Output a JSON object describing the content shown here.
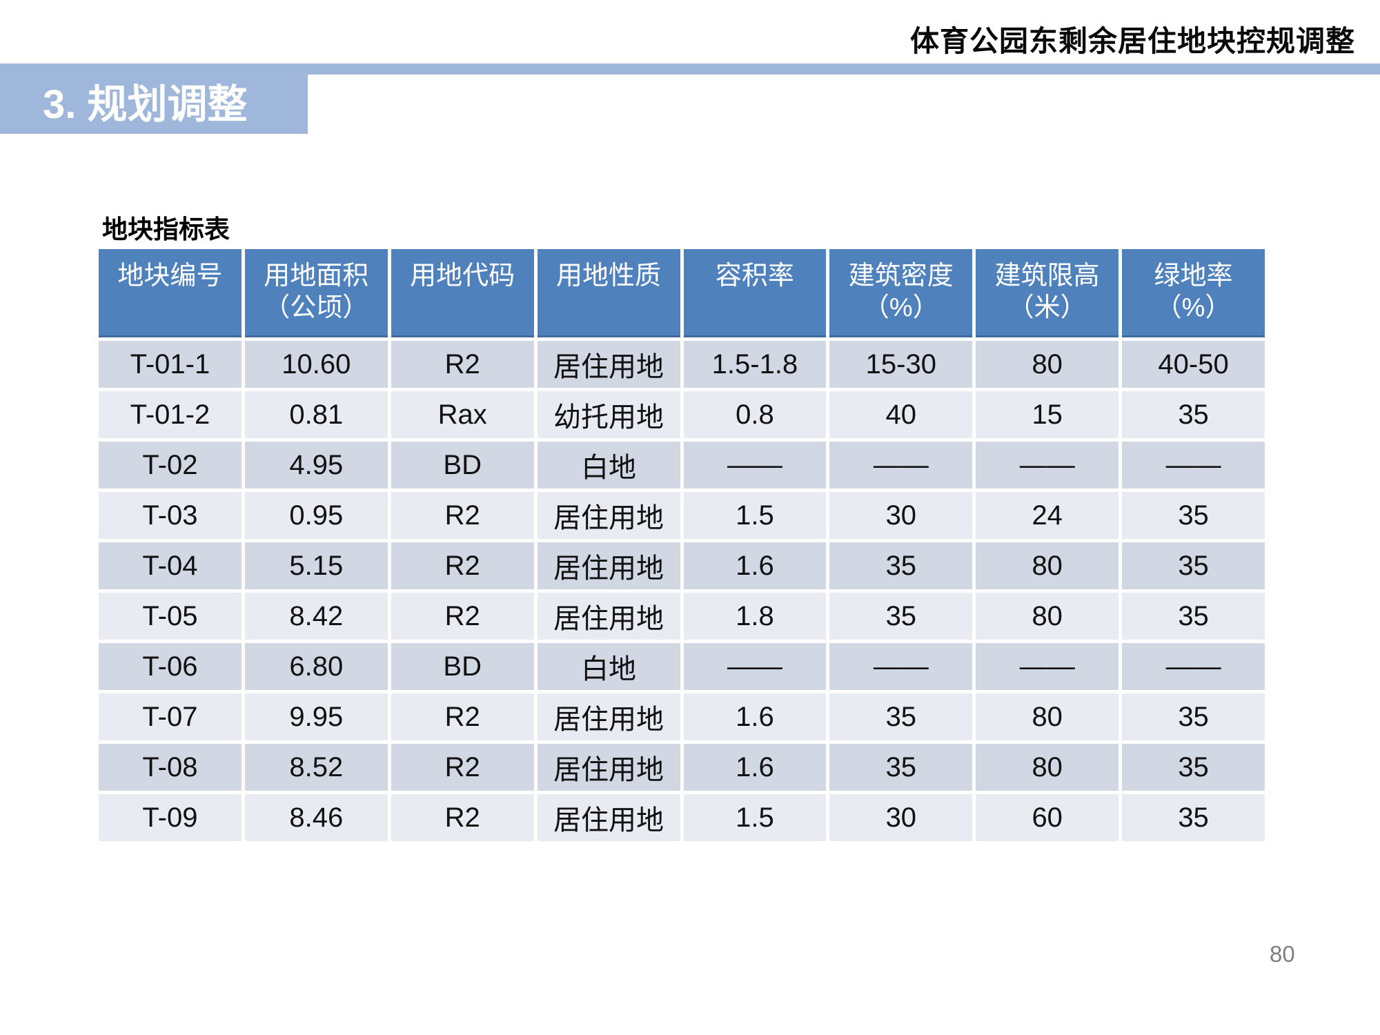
{
  "header": {
    "doc_title": "体育公园东剩余居住地块控规调整",
    "section_title": "3. 规划调整"
  },
  "colors": {
    "banner_blue": "#9FB7DA",
    "table_header_blue": "#4F81BD",
    "band_dark": "#D2D7E4",
    "band_light": "#E9EBF3"
  },
  "table": {
    "title": "地块指标表",
    "columns": [
      "地块编号",
      "用地面积\n（公顷）",
      "用地代码",
      "用地性质",
      "容积率",
      "建筑密度\n（%）",
      "建筑限高\n（米）",
      "绿地率\n（%）"
    ],
    "rows": [
      [
        "T-01-1",
        "10.60",
        "R2",
        "居住用地",
        "1.5-1.8",
        "15-30",
        "80",
        "40-50"
      ],
      [
        "T-01-2",
        "0.81",
        "Rax",
        "幼托用地",
        "0.8",
        "40",
        "15",
        "35"
      ],
      [
        "T-02",
        "4.95",
        "BD",
        "白地",
        "——",
        "——",
        "——",
        "——"
      ],
      [
        "T-03",
        "0.95",
        "R2",
        "居住用地",
        "1.5",
        "30",
        "24",
        "35"
      ],
      [
        "T-04",
        "5.15",
        "R2",
        "居住用地",
        "1.6",
        "35",
        "80",
        "35"
      ],
      [
        "T-05",
        "8.42",
        "R2",
        "居住用地",
        "1.8",
        "35",
        "80",
        "35"
      ],
      [
        "T-06",
        "6.80",
        "BD",
        "白地",
        "——",
        "——",
        "——",
        "——"
      ],
      [
        "T-07",
        "9.95",
        "R2",
        "居住用地",
        "1.6",
        "35",
        "80",
        "35"
      ],
      [
        "T-08",
        "8.52",
        "R2",
        "居住用地",
        "1.6",
        "35",
        "80",
        "35"
      ],
      [
        "T-09",
        "8.46",
        "R2",
        "居住用地",
        "1.5",
        "30",
        "60",
        "35"
      ]
    ]
  },
  "page": {
    "number": "80"
  }
}
